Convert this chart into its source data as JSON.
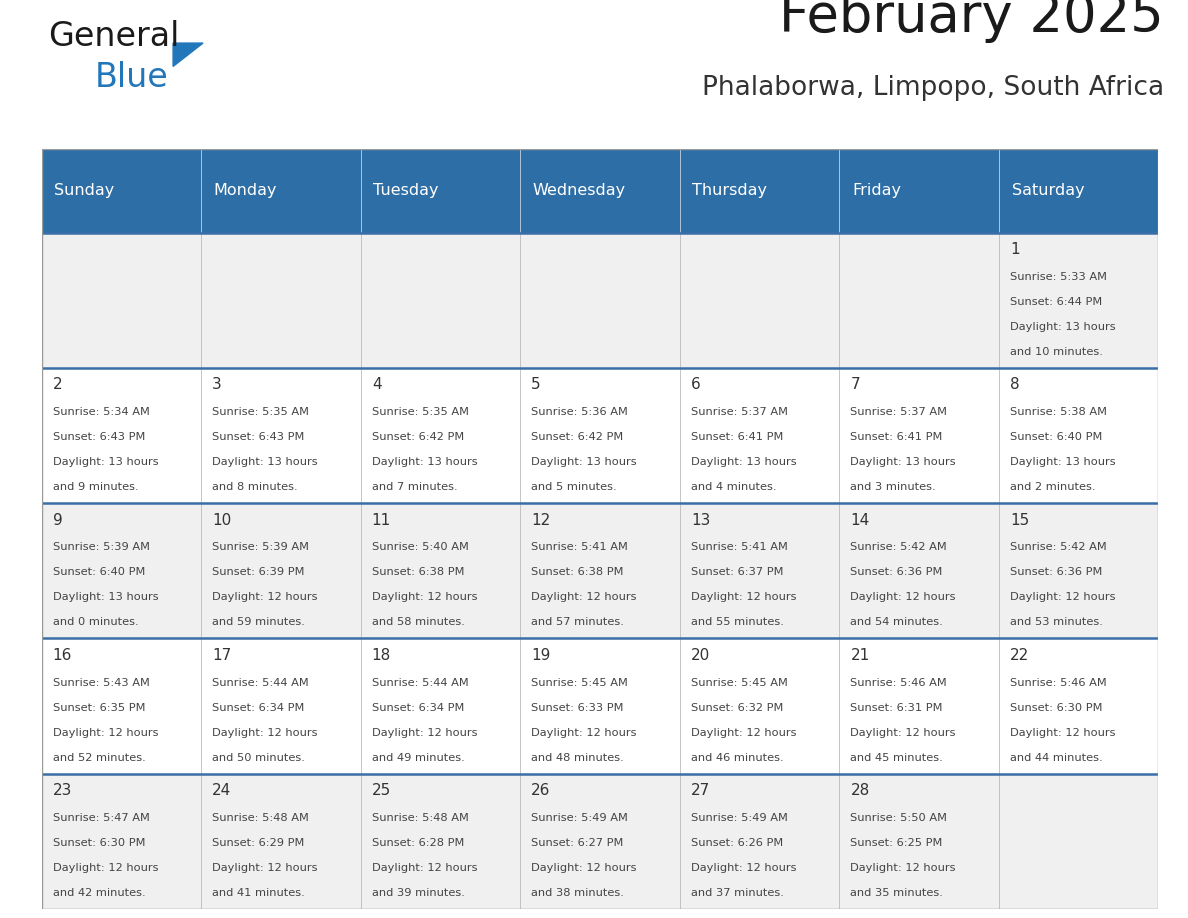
{
  "title": "February 2025",
  "subtitle": "Phalaborwa, Limpopo, South Africa",
  "days_of_week": [
    "Sunday",
    "Monday",
    "Tuesday",
    "Wednesday",
    "Thursday",
    "Friday",
    "Saturday"
  ],
  "header_bg": "#2E6EA6",
  "header_text": "#FFFFFF",
  "row_bg_light": "#F0F0F0",
  "row_bg_white": "#FFFFFF",
  "row_border_color": "#3A6EA8",
  "cell_divider": "#CCCCCC",
  "day_num_color": "#333333",
  "info_text_color": "#444444",
  "title_color": "#1a1a1a",
  "subtitle_color": "#333333",
  "logo_general_color": "#1a1a1a",
  "logo_blue_color": "#2277BB",
  "calendar_data": [
    {
      "day": 1,
      "col": 6,
      "row": 0,
      "sunrise": "5:33 AM",
      "sunset": "6:44 PM",
      "daylight": "13 hours and 10 minutes."
    },
    {
      "day": 2,
      "col": 0,
      "row": 1,
      "sunrise": "5:34 AM",
      "sunset": "6:43 PM",
      "daylight": "13 hours and 9 minutes."
    },
    {
      "day": 3,
      "col": 1,
      "row": 1,
      "sunrise": "5:35 AM",
      "sunset": "6:43 PM",
      "daylight": "13 hours and 8 minutes."
    },
    {
      "day": 4,
      "col": 2,
      "row": 1,
      "sunrise": "5:35 AM",
      "sunset": "6:42 PM",
      "daylight": "13 hours and 7 minutes."
    },
    {
      "day": 5,
      "col": 3,
      "row": 1,
      "sunrise": "5:36 AM",
      "sunset": "6:42 PM",
      "daylight": "13 hours and 5 minutes."
    },
    {
      "day": 6,
      "col": 4,
      "row": 1,
      "sunrise": "5:37 AM",
      "sunset": "6:41 PM",
      "daylight": "13 hours and 4 minutes."
    },
    {
      "day": 7,
      "col": 5,
      "row": 1,
      "sunrise": "5:37 AM",
      "sunset": "6:41 PM",
      "daylight": "13 hours and 3 minutes."
    },
    {
      "day": 8,
      "col": 6,
      "row": 1,
      "sunrise": "5:38 AM",
      "sunset": "6:40 PM",
      "daylight": "13 hours and 2 minutes."
    },
    {
      "day": 9,
      "col": 0,
      "row": 2,
      "sunrise": "5:39 AM",
      "sunset": "6:40 PM",
      "daylight": "13 hours and 0 minutes."
    },
    {
      "day": 10,
      "col": 1,
      "row": 2,
      "sunrise": "5:39 AM",
      "sunset": "6:39 PM",
      "daylight": "12 hours and 59 minutes."
    },
    {
      "day": 11,
      "col": 2,
      "row": 2,
      "sunrise": "5:40 AM",
      "sunset": "6:38 PM",
      "daylight": "12 hours and 58 minutes."
    },
    {
      "day": 12,
      "col": 3,
      "row": 2,
      "sunrise": "5:41 AM",
      "sunset": "6:38 PM",
      "daylight": "12 hours and 57 minutes."
    },
    {
      "day": 13,
      "col": 4,
      "row": 2,
      "sunrise": "5:41 AM",
      "sunset": "6:37 PM",
      "daylight": "12 hours and 55 minutes."
    },
    {
      "day": 14,
      "col": 5,
      "row": 2,
      "sunrise": "5:42 AM",
      "sunset": "6:36 PM",
      "daylight": "12 hours and 54 minutes."
    },
    {
      "day": 15,
      "col": 6,
      "row": 2,
      "sunrise": "5:42 AM",
      "sunset": "6:36 PM",
      "daylight": "12 hours and 53 minutes."
    },
    {
      "day": 16,
      "col": 0,
      "row": 3,
      "sunrise": "5:43 AM",
      "sunset": "6:35 PM",
      "daylight": "12 hours and 52 minutes."
    },
    {
      "day": 17,
      "col": 1,
      "row": 3,
      "sunrise": "5:44 AM",
      "sunset": "6:34 PM",
      "daylight": "12 hours and 50 minutes."
    },
    {
      "day": 18,
      "col": 2,
      "row": 3,
      "sunrise": "5:44 AM",
      "sunset": "6:34 PM",
      "daylight": "12 hours and 49 minutes."
    },
    {
      "day": 19,
      "col": 3,
      "row": 3,
      "sunrise": "5:45 AM",
      "sunset": "6:33 PM",
      "daylight": "12 hours and 48 minutes."
    },
    {
      "day": 20,
      "col": 4,
      "row": 3,
      "sunrise": "5:45 AM",
      "sunset": "6:32 PM",
      "daylight": "12 hours and 46 minutes."
    },
    {
      "day": 21,
      "col": 5,
      "row": 3,
      "sunrise": "5:46 AM",
      "sunset": "6:31 PM",
      "daylight": "12 hours and 45 minutes."
    },
    {
      "day": 22,
      "col": 6,
      "row": 3,
      "sunrise": "5:46 AM",
      "sunset": "6:30 PM",
      "daylight": "12 hours and 44 minutes."
    },
    {
      "day": 23,
      "col": 0,
      "row": 4,
      "sunrise": "5:47 AM",
      "sunset": "6:30 PM",
      "daylight": "12 hours and 42 minutes."
    },
    {
      "day": 24,
      "col": 1,
      "row": 4,
      "sunrise": "5:48 AM",
      "sunset": "6:29 PM",
      "daylight": "12 hours and 41 minutes."
    },
    {
      "day": 25,
      "col": 2,
      "row": 4,
      "sunrise": "5:48 AM",
      "sunset": "6:28 PM",
      "daylight": "12 hours and 39 minutes."
    },
    {
      "day": 26,
      "col": 3,
      "row": 4,
      "sunrise": "5:49 AM",
      "sunset": "6:27 PM",
      "daylight": "12 hours and 38 minutes."
    },
    {
      "day": 27,
      "col": 4,
      "row": 4,
      "sunrise": "5:49 AM",
      "sunset": "6:26 PM",
      "daylight": "12 hours and 37 minutes."
    },
    {
      "day": 28,
      "col": 5,
      "row": 4,
      "sunrise": "5:50 AM",
      "sunset": "6:25 PM",
      "daylight": "12 hours and 35 minutes."
    }
  ]
}
